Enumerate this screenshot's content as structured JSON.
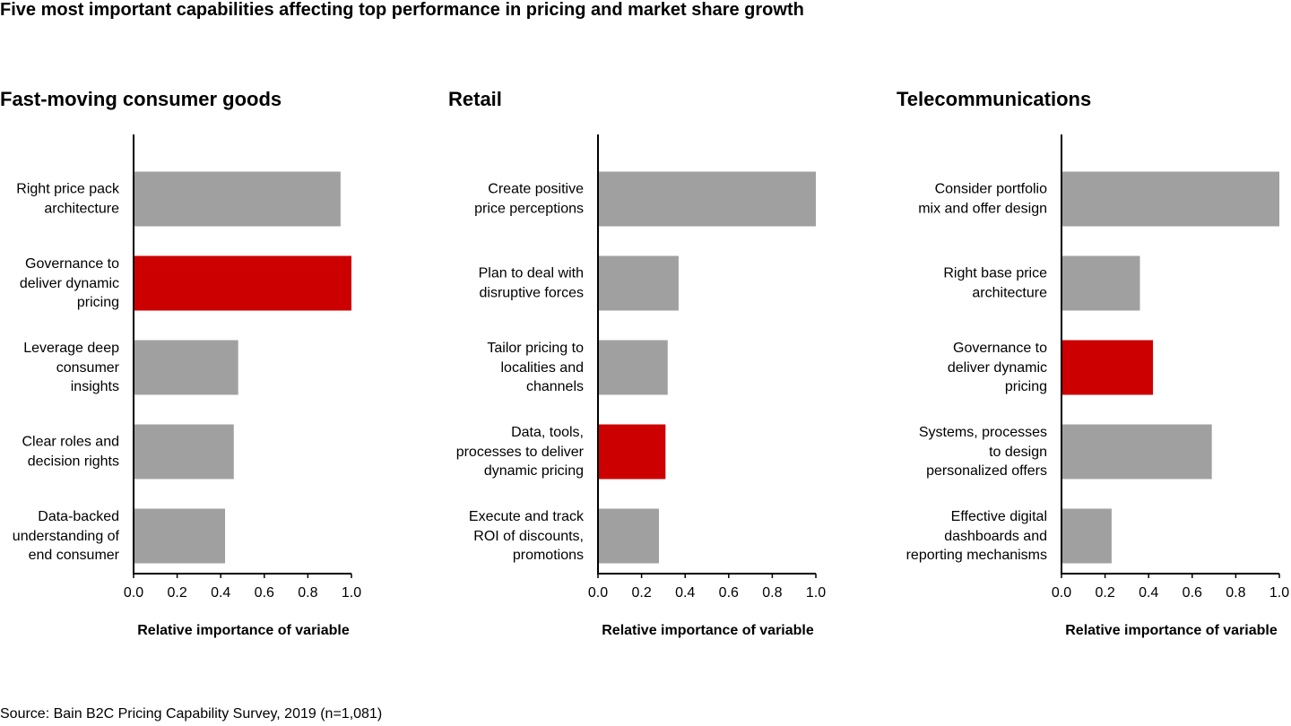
{
  "title": "Five most important capabilities affecting top performance in pricing and market share growth",
  "source": "Source: Bain B2C Pricing Capability Survey, 2019 (n=1,081)",
  "chart_data": [
    {
      "type": "bar",
      "orientation": "horizontal",
      "title": "Fast-moving consumer goods",
      "categories": [
        "Right price pack\narchitecture",
        "Governance to\ndeliver dynamic\npricing",
        "Leverage deep\nconsumer\ninsights",
        "Clear roles and\ndecision rights",
        "Data-backed\nunderstanding of\nend consumer"
      ],
      "values": [
        0.95,
        1.0,
        0.48,
        0.46,
        0.42
      ],
      "colors": [
        "#a0a0a0",
        "#cc0000",
        "#a0a0a0",
        "#a0a0a0",
        "#a0a0a0"
      ],
      "xlim": [
        0,
        1
      ],
      "xticks": [
        {
          "value": 0,
          "label": "0.0"
        },
        0.2,
        0.4,
        0.6,
        0.8,
        {
          "value": 1,
          "label": "1.0"
        }
      ],
      "xlabel": "Relative importance of variable"
    },
    {
      "type": "bar",
      "orientation": "horizontal",
      "title": "Retail",
      "categories": [
        "Create positive\nprice perceptions",
        "Plan to deal with\ndisruptive forces",
        "Tailor pricing to\nlocalities and\nchannels",
        "Data, tools,\nprocesses to deliver\ndynamic pricing",
        "Execute and track\nROI of discounts,\npromotions"
      ],
      "values": [
        1.0,
        0.37,
        0.32,
        0.31,
        0.28
      ],
      "colors": [
        "#a0a0a0",
        "#a0a0a0",
        "#a0a0a0",
        "#cc0000",
        "#a0a0a0"
      ],
      "xlim": [
        0,
        1
      ],
      "xticks": [
        {
          "value": 0,
          "label": "0.0"
        },
        0.2,
        0.4,
        0.6,
        0.8,
        {
          "value": 1,
          "label": "1.0"
        }
      ],
      "xlabel": "Relative importance of variable"
    },
    {
      "type": "bar",
      "orientation": "horizontal",
      "title": "Telecommunications",
      "categories": [
        "Consider portfolio\nmix and offer design",
        "Right base price\narchitecture",
        "Governance to\ndeliver dynamic\npricing",
        "Systems, processes\nto design\npersonalized offers",
        "Effective digital\ndashboards and\nreporting mechanisms"
      ],
      "values": [
        1.0,
        0.36,
        0.42,
        0.69,
        0.23
      ],
      "colors": [
        "#a0a0a0",
        "#a0a0a0",
        "#cc0000",
        "#a0a0a0",
        "#a0a0a0"
      ],
      "xlim": [
        0,
        1
      ],
      "xticks": [
        {
          "value": 0,
          "label": "0.0"
        },
        0.2,
        0.4,
        0.6,
        0.8,
        {
          "value": 1,
          "label": "1.0"
        }
      ],
      "xlabel": "Relative importance of variable"
    }
  ]
}
